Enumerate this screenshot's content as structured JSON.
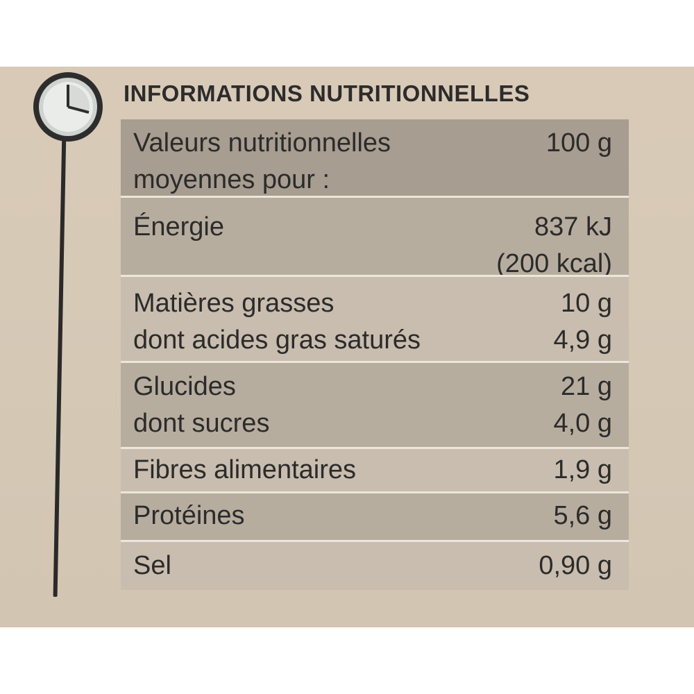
{
  "title": "INFORMATIONS NUTRITIONNELLES",
  "icon": "clock-icon",
  "colors": {
    "card": "#d6c9b6",
    "header_row": "#a79d90",
    "row_dark": "#b7ad9f",
    "row_light": "#c8bdae",
    "text": "#2b2b2b"
  },
  "header": {
    "label_line1": "Valeurs nutritionnelles",
    "label_line2": "moyennes pour :",
    "per": "100 g"
  },
  "rows": {
    "energy": {
      "label": "Énergie",
      "value_kj": "837 kJ",
      "value_kcal": "(200 kcal)"
    },
    "fat": {
      "label": "Matières grasses",
      "value": "10 g",
      "sub_label": "dont acides gras saturés",
      "sub_value": "4,9 g"
    },
    "carbs": {
      "label": "Glucides",
      "value": "21 g",
      "sub_label": "dont sucres",
      "sub_value": "4,0 g"
    },
    "fiber": {
      "label": "Fibres alimentaires",
      "value": "1,9 g"
    },
    "protein": {
      "label": "Protéines",
      "value": "5,6 g"
    },
    "salt": {
      "label": "Sel",
      "value": "0,90 g"
    }
  }
}
